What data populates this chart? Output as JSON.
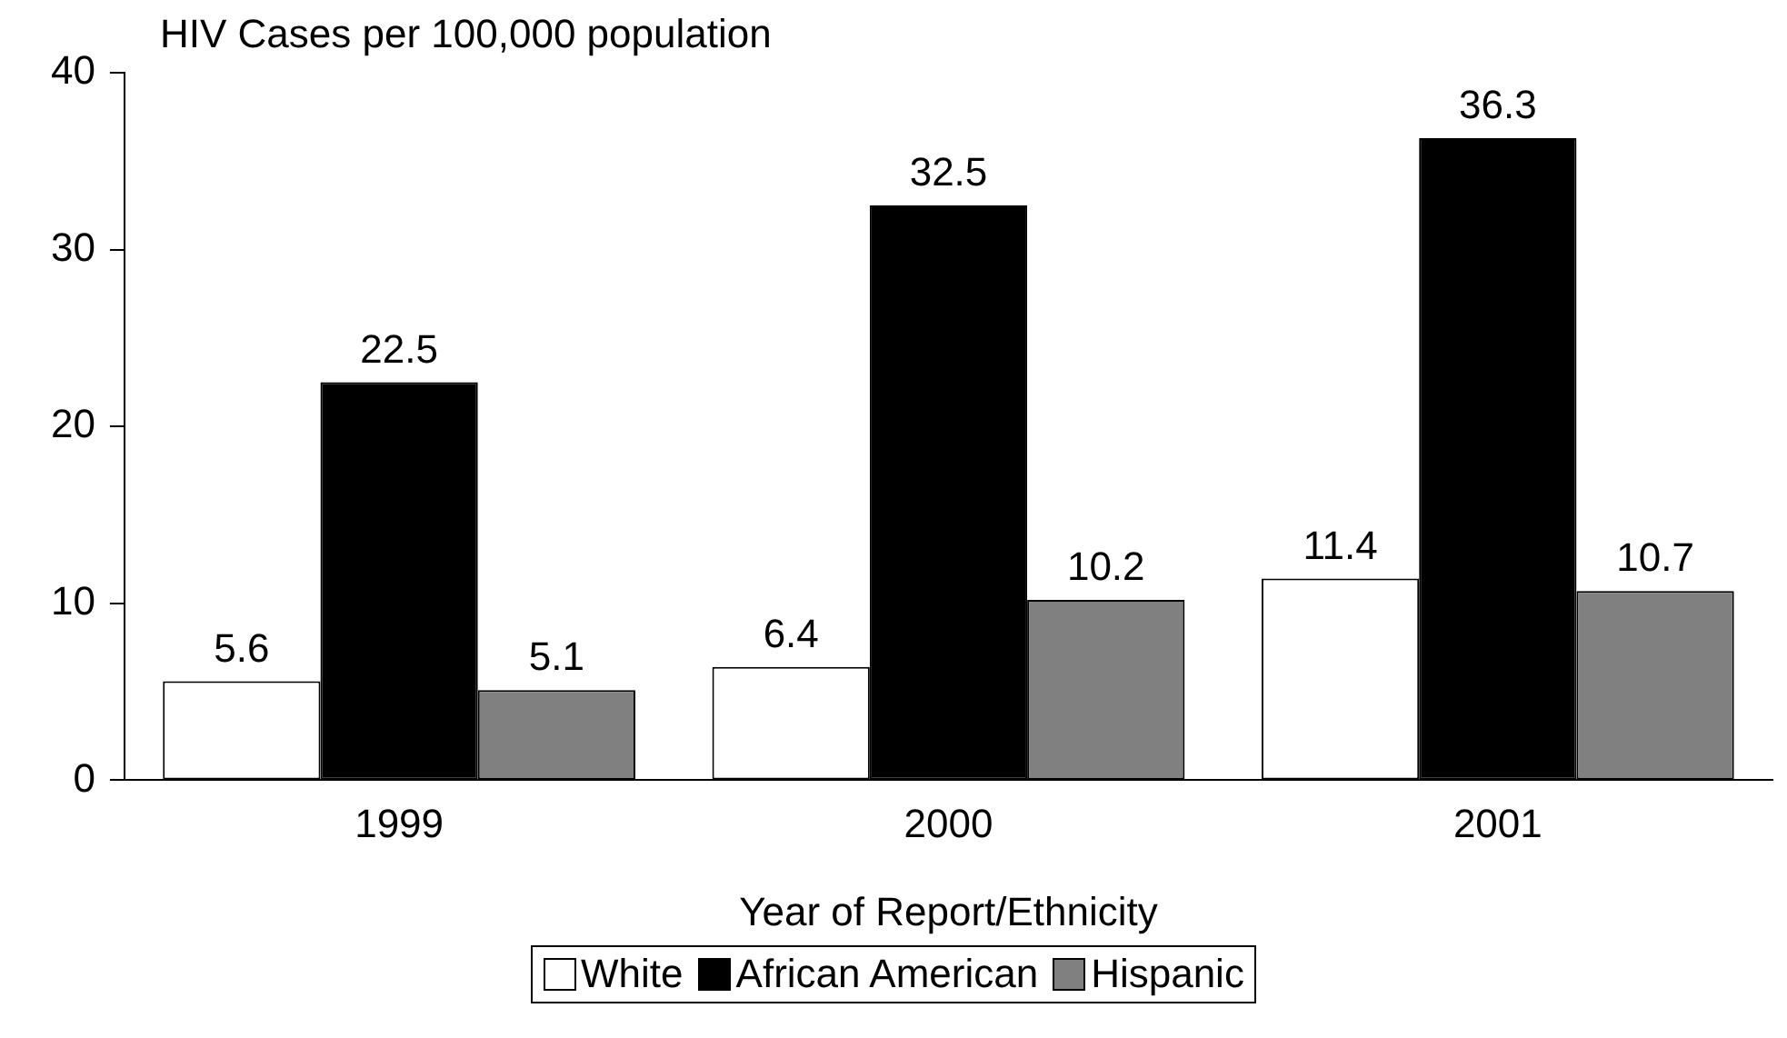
{
  "chart_data": {
    "type": "bar",
    "ylabel": "HIV Cases per 100,000 population",
    "xlabel": "Year of Report/Ethnicity",
    "categories": [
      "1999",
      "2000",
      "2001"
    ],
    "series": [
      {
        "name": "White",
        "color": "#ffffff",
        "values": [
          5.6,
          6.4,
          11.4
        ]
      },
      {
        "name": "African American",
        "color": "#000000",
        "values": [
          22.5,
          32.5,
          36.3
        ]
      },
      {
        "name": "Hispanic",
        "color": "#808080",
        "values": [
          5.1,
          10.2,
          10.7
        ]
      }
    ],
    "ylim": [
      0,
      40
    ],
    "yticks": [
      0,
      10,
      20,
      30,
      40
    ],
    "grid": false,
    "legend": "bottom",
    "data_labels": true
  }
}
